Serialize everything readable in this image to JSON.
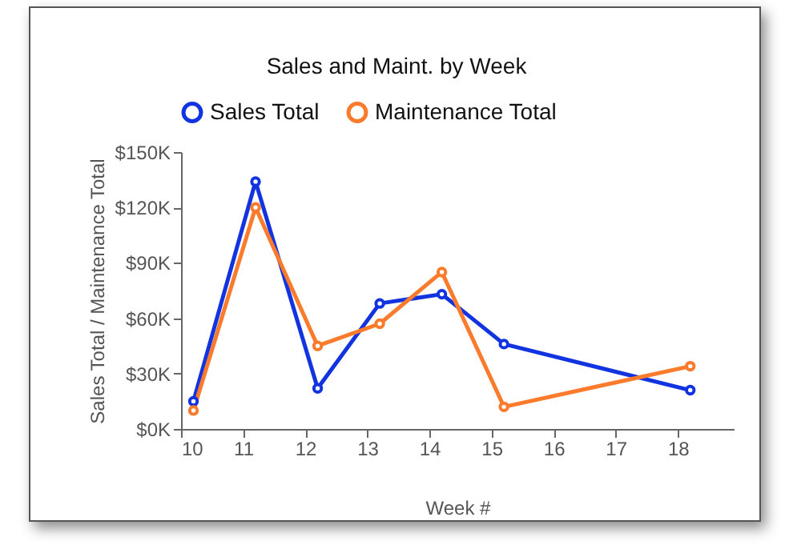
{
  "chart_data": {
    "type": "line",
    "title": "Sales and Maint. by Week",
    "xlabel": "Week #",
    "ylabel": "Sales Total / Maintenance Total",
    "x": [
      10.2,
      11.2,
      12.2,
      13.2,
      14.2,
      15.2,
      18.2
    ],
    "series": [
      {
        "name": "Sales Total",
        "color": "#1234e0",
        "values": [
          15000,
          134000,
          22000,
          68000,
          73000,
          46000,
          21000
        ]
      },
      {
        "name": "Maintenance Total",
        "color": "#fb7b2c",
        "values": [
          10000,
          120000,
          45000,
          57000,
          85000,
          12000,
          34000
        ]
      }
    ],
    "xlim": [
      10,
      18.9
    ],
    "xticks": [
      10,
      11,
      12,
      13,
      14,
      15,
      16,
      17,
      18
    ],
    "ylim": [
      0,
      150000
    ],
    "yticks": [
      {
        "value": 0,
        "label": "$0K"
      },
      {
        "value": 30000,
        "label": "$30K"
      },
      {
        "value": 60000,
        "label": "$60K"
      },
      {
        "value": 90000,
        "label": "$90K"
      },
      {
        "value": 120000,
        "label": "$120K"
      },
      {
        "value": 150000,
        "label": "$150K"
      }
    ],
    "legend": "top",
    "marker": "circle",
    "line_style": "solid"
  }
}
